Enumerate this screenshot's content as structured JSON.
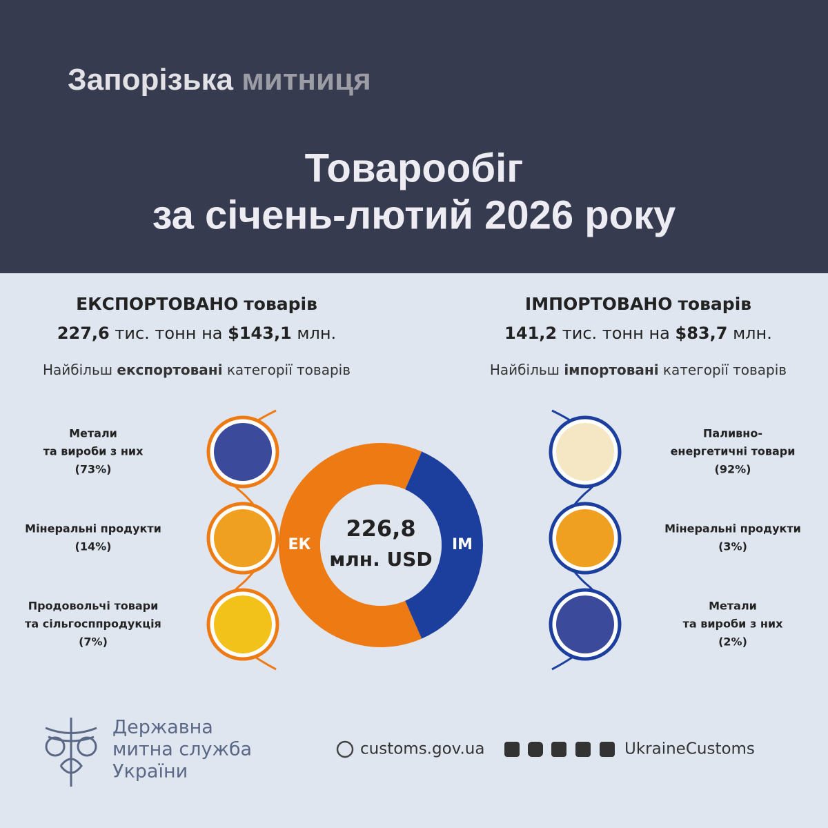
{
  "header": {
    "agency_part1": "Запорізька",
    "agency_part2": "митниця",
    "title_line1": "Товарообіг",
    "title_line2": "за січень-лютий 2026 року"
  },
  "export": {
    "heading_bold": "ЕКСПОРТОВАНО",
    "heading_rest": "товарів",
    "tonnes": "227,6",
    "tonnes_unit": "тис. тонн",
    "on": "на",
    "amount": "$143,1",
    "amount_unit": "млн.",
    "sub_pre": "Найбільш",
    "sub_bold": "експортовані",
    "sub_post": "категорії товарів",
    "categories": [
      {
        "name_lines": [
          "Метали",
          "та вироби з них"
        ],
        "share": "(73%)"
      },
      {
        "name_lines": [
          "Мінеральні продукти"
        ],
        "share": "(14%)"
      },
      {
        "name_lines": [
          "Продовольчі  товари",
          "та сільгосппродукція"
        ],
        "share": "(7%)"
      }
    ]
  },
  "import": {
    "heading_bold": "ІМПОРТОВАНО",
    "heading_rest": "товарів",
    "tonnes": "141,2",
    "tonnes_unit": "тис. тонн",
    "on": "на",
    "amount": "$83,7",
    "amount_unit": "млн.",
    "sub_pre": "Найбільш",
    "sub_bold": "імпортовані",
    "sub_post": "категорії товарів",
    "categories": [
      {
        "name_lines": [
          "Паливно-",
          "енергетичні товари"
        ],
        "share": "(92%)"
      },
      {
        "name_lines": [
          "Мінеральні продукти"
        ],
        "share": "(3%)"
      },
      {
        "name_lines": [
          "Метали",
          "та вироби з них"
        ],
        "share": "(2%)"
      }
    ]
  },
  "donut": {
    "center_value": "226,8",
    "center_unit": "млн. USD",
    "segments": [
      {
        "label": "ЕК",
        "value": 143.1,
        "color": "#ee7a14"
      },
      {
        "label": "ІМ",
        "value": 83.7,
        "color": "#1c3f9e"
      }
    ]
  },
  "footer": {
    "org_lines": [
      "Державна",
      "митна служба",
      "України"
    ],
    "website": "customs.gov.ua",
    "handle": "UkraineCustoms"
  }
}
